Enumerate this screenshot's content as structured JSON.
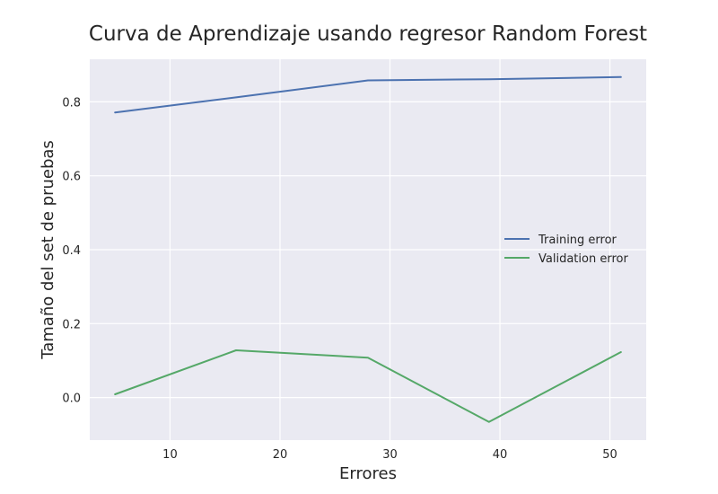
{
  "chart_data": {
    "type": "line",
    "title": "Curva de Aprendizaje usando regresor Random Forest",
    "xlabel": "Errores",
    "ylabel": "Tamaño del set de pruebas",
    "xlim": [
      2.7,
      53.3
    ],
    "ylim": [
      -0.115,
      0.915
    ],
    "xticks": [
      10,
      20,
      30,
      40,
      50
    ],
    "yticks": [
      0.0,
      0.2,
      0.4,
      0.6,
      0.8
    ],
    "xtick_labels": [
      "10",
      "20",
      "30",
      "40",
      "50"
    ],
    "ytick_labels": [
      "0.0",
      "0.2",
      "0.4",
      "0.6",
      "0.8"
    ],
    "grid": true,
    "legend_position": "center-right",
    "background": "#eaeaf2",
    "series": [
      {
        "name": "Training error",
        "color": "#4c72b0",
        "x": [
          5,
          16,
          28,
          39,
          51
        ],
        "y": [
          0.771,
          0.812,
          0.858,
          0.861,
          0.867
        ]
      },
      {
        "name": "Validation error",
        "color": "#55a868",
        "x": [
          5,
          16,
          28,
          39,
          51
        ],
        "y": [
          0.009,
          0.128,
          0.108,
          -0.066,
          0.123
        ]
      }
    ]
  }
}
